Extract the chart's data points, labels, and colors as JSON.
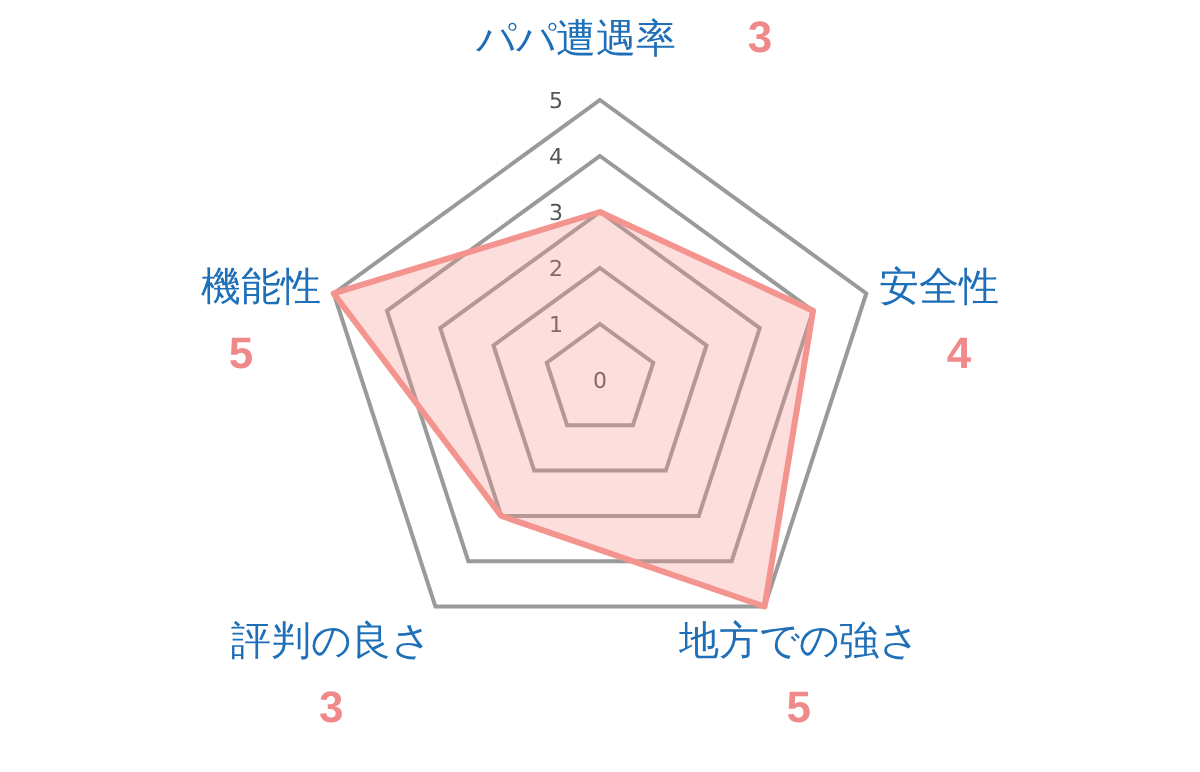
{
  "chart_data": {
    "type": "radar",
    "categories": [
      "パパ遭遇率",
      "安全性",
      "地方での強さ",
      "評判の良さ",
      "機能性"
    ],
    "series": [
      {
        "color": "#f4948e",
        "values": [
          3,
          4,
          5,
          3,
          5
        ]
      }
    ],
    "annotations": [
      "3",
      "4",
      "5",
      "3",
      "5"
    ],
    "ylim": [
      0,
      5
    ],
    "yticks": [
      0,
      1,
      2,
      3,
      4,
      5
    ],
    "grid": true
  }
}
